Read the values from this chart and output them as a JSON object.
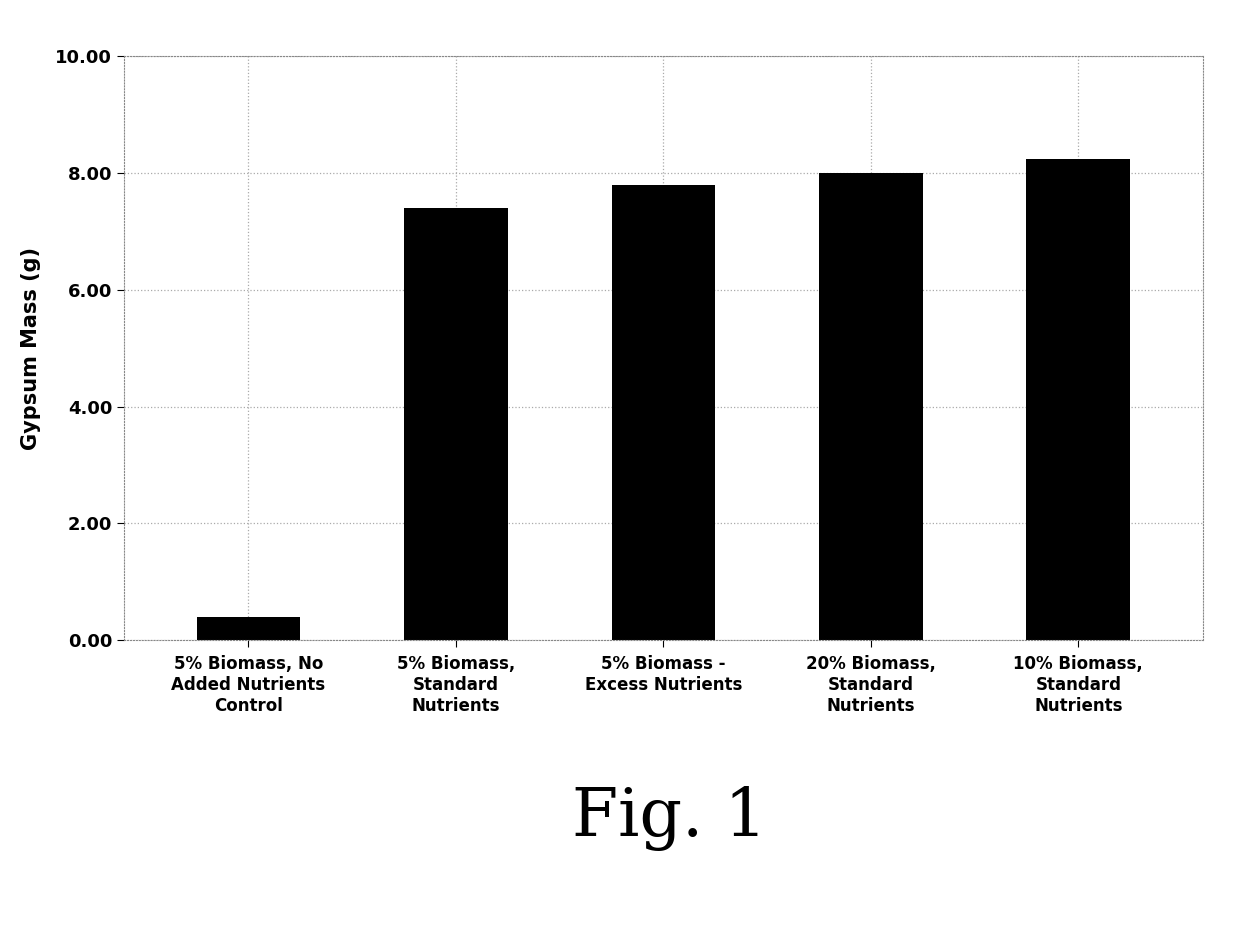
{
  "categories": [
    "5% Biomass, No\nAdded Nutrients\nControl",
    "5% Biomass,\nStandard\nNutrients",
    "5% Biomass -\nExcess Nutrients",
    "20% Biomass,\nStandard\nNutrients",
    "10% Biomass,\nStandard\nNutrients"
  ],
  "values": [
    0.4,
    7.4,
    7.8,
    8.0,
    8.25
  ],
  "bar_color": "#000000",
  "ylabel": "Gypsum Mass (g)",
  "ylim": [
    0,
    10.0
  ],
  "yticks": [
    0.0,
    2.0,
    4.0,
    6.0,
    8.0,
    10.0
  ],
  "figure_label": "Fig. 1",
  "background_color": "#ffffff",
  "plot_bg_color": "#ffffff",
  "grid_color": "#aaaaaa",
  "ylabel_fontsize": 15,
  "tick_fontsize": 13,
  "xlabel_fontsize": 12,
  "fig_label_fontsize": 48
}
